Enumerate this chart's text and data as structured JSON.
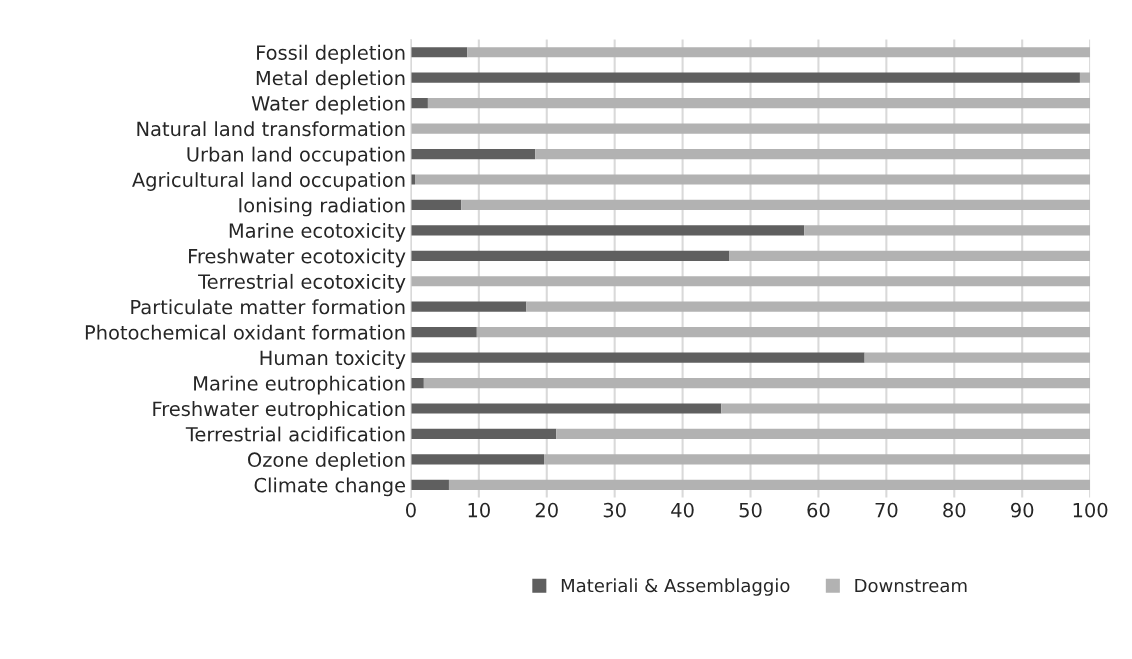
{
  "chart_data": {
    "type": "bar",
    "orientation": "horizontal",
    "stacked": true,
    "categories": [
      "Fossil depletion",
      "Metal depletion",
      "Water depletion",
      "Natural land transformation",
      "Urban land occupation",
      "Agricultural land occupation",
      "Ionising radiation",
      "Marine ecotoxicity",
      "Freshwater ecotoxicity",
      "Terrestrial ecotoxicity",
      "Particulate matter formation",
      "Photochemical oxidant formation",
      "Human toxicity",
      "Marine eutrophication",
      "Freshwater eutrophication",
      "Terrestrial acidification",
      "Ozone depletion",
      "Climate change"
    ],
    "series": [
      {
        "name": "Materiali & Assemblaggio",
        "color": "#5f5f5f",
        "values": [
          8.3,
          98.5,
          2.5,
          0,
          18.3,
          0.6,
          7.4,
          57.9,
          46.9,
          0,
          17.0,
          9.7,
          66.8,
          1.9,
          45.7,
          21.4,
          19.6,
          5.6
        ]
      },
      {
        "name": "Downstream",
        "color": "#b2b2b2",
        "values": [
          91.7,
          1.5,
          97.5,
          100,
          81.7,
          99.4,
          92.6,
          42.1,
          53.1,
          100,
          83.0,
          90.3,
          33.2,
          98.1,
          54.3,
          78.6,
          80.4,
          94.4
        ]
      }
    ],
    "xlim": [
      0,
      100
    ],
    "xticks": [
      0,
      10,
      20,
      30,
      40,
      50,
      60,
      70,
      80,
      90,
      100
    ],
    "grid": "x",
    "legend": "bottom"
  }
}
